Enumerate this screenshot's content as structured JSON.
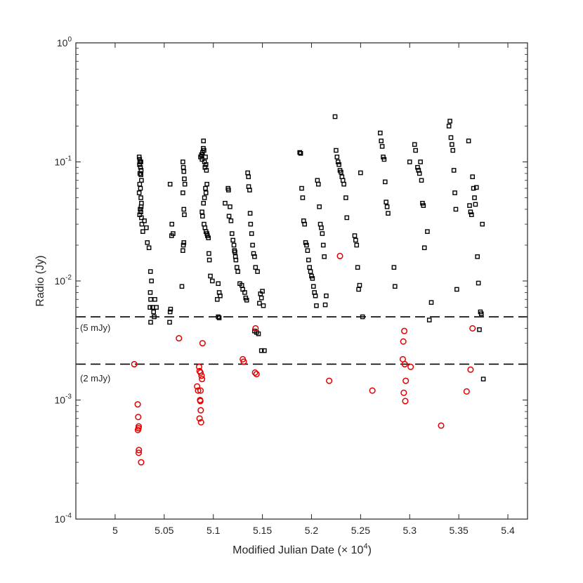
{
  "chart_data": {
    "type": "scatter",
    "title": "",
    "xlabel": "Modified Julian Date (× 10",
    "xlabel_exponent": "4",
    "xlabel_close": ")",
    "ylabel": "Radio (Jy)",
    "x_scale": "linear",
    "y_scale": "log",
    "xlim": [
      49600,
      54200
    ],
    "ylim": [
      0.0001,
      1
    ],
    "x_ticks": [
      50000,
      50500,
      51000,
      51500,
      52000,
      52500,
      53000,
      53500,
      54000
    ],
    "x_tick_labels": [
      "5",
      "5.05",
      "5.1",
      "5.15",
      "5.2",
      "5.25",
      "5.3",
      "5.35",
      "5.4"
    ],
    "y_ticks": [
      0.0001,
      0.001,
      0.01,
      0.1,
      1
    ],
    "y_tick_labels": [
      {
        "base": "10",
        "exp": "-4"
      },
      {
        "base": "10",
        "exp": "-3"
      },
      {
        "base": "10",
        "exp": "-2"
      },
      {
        "base": "10",
        "exp": "-1"
      },
      {
        "base": "10",
        "exp": "0"
      }
    ],
    "grid": false,
    "reference_lines": [
      {
        "y": 0.005,
        "label": "(5 mJy)"
      },
      {
        "y": 0.002,
        "label": "(2 mJy)"
      }
    ],
    "series": [
      {
        "marker": "square",
        "color": "#000000",
        "points": [
          [
            50245,
            0.11
          ],
          [
            50250,
            0.105
          ],
          [
            50255,
            0.1
          ],
          [
            50248,
            0.095
          ],
          [
            50262,
            0.1
          ],
          [
            50258,
            0.09
          ],
          [
            50265,
            0.085
          ],
          [
            50252,
            0.08
          ],
          [
            50263,
            0.078
          ],
          [
            50268,
            0.07
          ],
          [
            50250,
            0.065
          ],
          [
            50258,
            0.06
          ],
          [
            50245,
            0.055
          ],
          [
            50262,
            0.05
          ],
          [
            50268,
            0.045
          ],
          [
            50265,
            0.042
          ],
          [
            50255,
            0.04
          ],
          [
            50262,
            0.038
          ],
          [
            50250,
            0.036
          ],
          [
            50268,
            0.034
          ],
          [
            50272,
            0.03
          ],
          [
            50282,
            0.026
          ],
          [
            50298,
            0.032
          ],
          [
            50318,
            0.028
          ],
          [
            50328,
            0.021
          ],
          [
            50345,
            0.019
          ],
          [
            50360,
            0.012
          ],
          [
            50370,
            0.01
          ],
          [
            50358,
            0.008
          ],
          [
            50362,
            0.007
          ],
          [
            50355,
            0.006
          ],
          [
            50382,
            0.006
          ],
          [
            50392,
            0.0055
          ],
          [
            50398,
            0.005
          ],
          [
            50362,
            0.0045
          ],
          [
            50405,
            0.007
          ],
          [
            50420,
            0.006
          ],
          [
            50560,
            0.065
          ],
          [
            50575,
            0.024
          ],
          [
            50578,
            0.03
          ],
          [
            50590,
            0.025
          ],
          [
            50560,
            0.0055
          ],
          [
            50565,
            0.0058
          ],
          [
            50555,
            0.0045
          ],
          [
            50690,
            0.1
          ],
          [
            50695,
            0.09
          ],
          [
            50700,
            0.083
          ],
          [
            50705,
            0.072
          ],
          [
            50710,
            0.065
          ],
          [
            50690,
            0.055
          ],
          [
            50700,
            0.04
          ],
          [
            50705,
            0.036
          ],
          [
            50695,
            0.02
          ],
          [
            50690,
            0.018
          ],
          [
            50700,
            0.021
          ],
          [
            50680,
            0.009
          ],
          [
            50870,
            0.11
          ],
          [
            50880,
            0.115
          ],
          [
            50885,
            0.105
          ],
          [
            50890,
            0.12
          ],
          [
            50898,
            0.13
          ],
          [
            50905,
            0.125
          ],
          [
            50900,
            0.15
          ],
          [
            50910,
            0.1
          ],
          [
            50915,
            0.09
          ],
          [
            50920,
            0.11
          ],
          [
            50925,
            0.095
          ],
          [
            50930,
            0.085
          ],
          [
            50935,
            0.065
          ],
          [
            50920,
            0.06
          ],
          [
            50925,
            0.055
          ],
          [
            50910,
            0.05
          ],
          [
            50900,
            0.045
          ],
          [
            50885,
            0.038
          ],
          [
            50890,
            0.035
          ],
          [
            50905,
            0.03
          ],
          [
            50915,
            0.028
          ],
          [
            50925,
            0.026
          ],
          [
            50935,
            0.025
          ],
          [
            50940,
            0.024
          ],
          [
            50950,
            0.023
          ],
          [
            50955,
            0.017
          ],
          [
            50960,
            0.015
          ],
          [
            50970,
            0.011
          ],
          [
            50990,
            0.01
          ],
          [
            51040,
            0.007
          ],
          [
            51050,
            0.0095
          ],
          [
            51060,
            0.008
          ],
          [
            51070,
            0.0075
          ],
          [
            51050,
            0.005
          ],
          [
            51060,
            0.0049
          ],
          [
            51120,
            0.045
          ],
          [
            51150,
            0.06
          ],
          [
            51155,
            0.058
          ],
          [
            51160,
            0.035
          ],
          [
            51170,
            0.042
          ],
          [
            51180,
            0.032
          ],
          [
            51190,
            0.025
          ],
          [
            51200,
            0.022
          ],
          [
            51210,
            0.02
          ],
          [
            51215,
            0.018
          ],
          [
            51220,
            0.0175
          ],
          [
            51225,
            0.016
          ],
          [
            51230,
            0.015
          ],
          [
            51240,
            0.013
          ],
          [
            51250,
            0.012
          ],
          [
            51270,
            0.0095
          ],
          [
            51290,
            0.0092
          ],
          [
            51300,
            0.0085
          ],
          [
            51320,
            0.008
          ],
          [
            51330,
            0.0072
          ],
          [
            51340,
            0.0069
          ],
          [
            51350,
            0.081
          ],
          [
            51358,
            0.075
          ],
          [
            51360,
            0.062
          ],
          [
            51370,
            0.058
          ],
          [
            51375,
            0.037
          ],
          [
            51380,
            0.03
          ],
          [
            51390,
            0.025
          ],
          [
            51400,
            0.02
          ],
          [
            51410,
            0.017
          ],
          [
            51420,
            0.016
          ],
          [
            51430,
            0.013
          ],
          [
            51450,
            0.012
          ],
          [
            51470,
            0.0065
          ],
          [
            51480,
            0.0078
          ],
          [
            51490,
            0.0072
          ],
          [
            51500,
            0.0082
          ],
          [
            51510,
            0.0062
          ],
          [
            51420,
            0.0038
          ],
          [
            51440,
            0.0037
          ],
          [
            51460,
            0.0036
          ],
          [
            51490,
            0.0026
          ],
          [
            51520,
            0.0026
          ],
          [
            51880,
            0.12
          ],
          [
            51890,
            0.118
          ],
          [
            51900,
            0.06
          ],
          [
            51910,
            0.05
          ],
          [
            51920,
            0.032
          ],
          [
            51930,
            0.03
          ],
          [
            51940,
            0.021
          ],
          [
            51950,
            0.02
          ],
          [
            51960,
            0.018
          ],
          [
            51970,
            0.015
          ],
          [
            51980,
            0.013
          ],
          [
            51990,
            0.012
          ],
          [
            52000,
            0.011
          ],
          [
            52010,
            0.0105
          ],
          [
            52020,
            0.009
          ],
          [
            52030,
            0.008
          ],
          [
            52040,
            0.0075
          ],
          [
            52050,
            0.0062
          ],
          [
            52060,
            0.07
          ],
          [
            52070,
            0.065
          ],
          [
            52080,
            0.042
          ],
          [
            52090,
            0.03
          ],
          [
            52100,
            0.028
          ],
          [
            52110,
            0.025
          ],
          [
            52120,
            0.02
          ],
          [
            52130,
            0.016
          ],
          [
            52140,
            0.0063
          ],
          [
            52150,
            0.0075
          ],
          [
            52240,
            0.24
          ],
          [
            52250,
            0.125
          ],
          [
            52260,
            0.11
          ],
          [
            52270,
            0.1
          ],
          [
            52280,
            0.095
          ],
          [
            52290,
            0.085
          ],
          [
            52300,
            0.082
          ],
          [
            52310,
            0.075
          ],
          [
            52320,
            0.07
          ],
          [
            52330,
            0.065
          ],
          [
            52350,
            0.05
          ],
          [
            52360,
            0.034
          ],
          [
            52440,
            0.024
          ],
          [
            52450,
            0.022
          ],
          [
            52460,
            0.02
          ],
          [
            52470,
            0.013
          ],
          [
            52480,
            0.0085
          ],
          [
            52490,
            0.0092
          ],
          [
            52500,
            0.081
          ],
          [
            52520,
            0.005
          ],
          [
            52700,
            0.175
          ],
          [
            52710,
            0.15
          ],
          [
            52720,
            0.135
          ],
          [
            52730,
            0.11
          ],
          [
            52740,
            0.105
          ],
          [
            52750,
            0.068
          ],
          [
            52760,
            0.046
          ],
          [
            52770,
            0.042
          ],
          [
            52780,
            0.037
          ],
          [
            52840,
            0.013
          ],
          [
            52850,
            0.009
          ],
          [
            53000,
            0.1
          ],
          [
            53050,
            0.14
          ],
          [
            53060,
            0.125
          ],
          [
            53080,
            0.09
          ],
          [
            53090,
            0.085
          ],
          [
            53100,
            0.08
          ],
          [
            53110,
            0.1
          ],
          [
            53120,
            0.07
          ],
          [
            53130,
            0.045
          ],
          [
            53140,
            0.043
          ],
          [
            53150,
            0.019
          ],
          [
            53180,
            0.026
          ],
          [
            53200,
            0.0047
          ],
          [
            53220,
            0.0066
          ],
          [
            53400,
            0.2
          ],
          [
            53410,
            0.22
          ],
          [
            53420,
            0.16
          ],
          [
            53430,
            0.14
          ],
          [
            53440,
            0.125
          ],
          [
            53450,
            0.085
          ],
          [
            53460,
            0.055
          ],
          [
            53470,
            0.04
          ],
          [
            53480,
            0.0085
          ],
          [
            53600,
            0.15
          ],
          [
            53610,
            0.043
          ],
          [
            53620,
            0.038
          ],
          [
            53630,
            0.036
          ],
          [
            53640,
            0.075
          ],
          [
            53650,
            0.06
          ],
          [
            53660,
            0.05
          ],
          [
            53670,
            0.044
          ],
          [
            53680,
            0.061
          ],
          [
            53690,
            0.016
          ],
          [
            53700,
            0.0096
          ],
          [
            53710,
            0.0039
          ],
          [
            53720,
            0.0055
          ],
          [
            53730,
            0.0053
          ],
          [
            53740,
            0.03
          ],
          [
            53750,
            0.0015
          ]
        ]
      },
      {
        "marker": "circle",
        "color": "#e60000",
        "points": [
          [
            50195,
            0.002
          ],
          [
            50230,
            0.00092
          ],
          [
            50235,
            0.00072
          ],
          [
            50240,
            0.0006
          ],
          [
            50238,
            0.00058
          ],
          [
            50232,
            0.00056
          ],
          [
            50242,
            0.00038
          ],
          [
            50240,
            0.00036
          ],
          [
            50265,
            0.0003
          ],
          [
            50650,
            0.0033
          ],
          [
            50890,
            0.003
          ],
          [
            50835,
            0.0013
          ],
          [
            50845,
            0.0012
          ],
          [
            50855,
            0.0019
          ],
          [
            50860,
            0.00175
          ],
          [
            50870,
            0.0017
          ],
          [
            50880,
            0.0016
          ],
          [
            50885,
            0.0015
          ],
          [
            50870,
            0.0012
          ],
          [
            50865,
            0.001
          ],
          [
            50868,
            0.00098
          ],
          [
            50872,
            0.00082
          ],
          [
            50860,
            0.0007
          ],
          [
            50875,
            0.00065
          ],
          [
            51300,
            0.0022
          ],
          [
            51310,
            0.0021
          ],
          [
            51430,
            0.004
          ],
          [
            51425,
            0.0017
          ],
          [
            51440,
            0.00165
          ],
          [
            52290,
            0.0162
          ],
          [
            52180,
            0.00145
          ],
          [
            52620,
            0.0012
          ],
          [
            52930,
            0.0022
          ],
          [
            52935,
            0.0031
          ],
          [
            52945,
            0.0038
          ],
          [
            52950,
            0.002
          ],
          [
            52960,
            0.00145
          ],
          [
            52940,
            0.00115
          ],
          [
            52955,
            0.00098
          ],
          [
            53010,
            0.0019
          ],
          [
            53320,
            0.00061
          ],
          [
            53580,
            0.00118
          ],
          [
            53620,
            0.0018
          ],
          [
            53640,
            0.004
          ]
        ]
      }
    ]
  }
}
